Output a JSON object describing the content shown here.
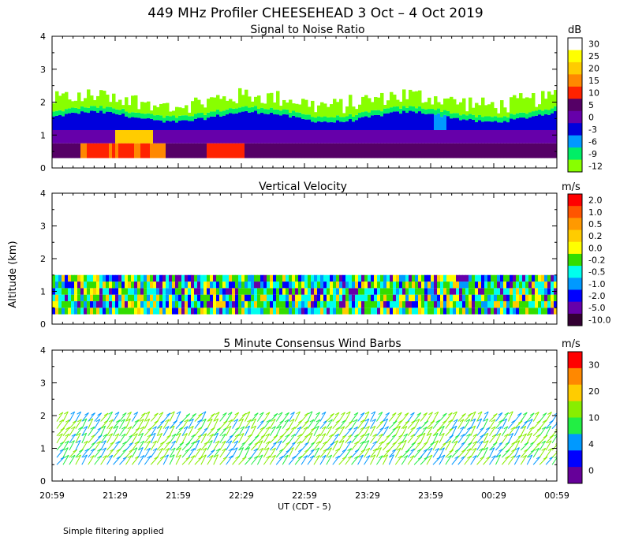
{
  "title": "449 MHz Profiler CHEESEHEAD  3 Oct –  4 Oct 2019",
  "ylabel": "Altitude (km)",
  "xlabel": "UT  (CDT - 5)",
  "footnote": "Simple filtering applied",
  "x_ticks": [
    "20:59",
    "21:29",
    "21:59",
    "22:29",
    "22:59",
    "23:29",
    "23:59",
    "00:29",
    "00:59"
  ],
  "y_ticks": [
    "0",
    "1",
    "2",
    "3",
    "4"
  ],
  "chart_data": [
    {
      "type": "heatmap",
      "title": "Signal to Noise Ratio",
      "xlabel": "UT  (CDT - 5)",
      "ylabel": "Altitude (km)",
      "ylim": [
        0,
        4
      ],
      "unit": "dB",
      "colorbar_labels": [
        "30",
        "25",
        "20",
        "15",
        "10",
        "5",
        "0",
        "-3",
        "-6",
        "-9",
        "-12"
      ],
      "colorbar_colors": [
        "#ffffff",
        "#ffff00",
        "#ffcc00",
        "#ff8800",
        "#ff2200",
        "#550066",
        "#6600aa",
        "#0000dd",
        "#0099ff",
        "#00ee66",
        "#88ff00"
      ],
      "data_extent_km": [
        0.3,
        2.3
      ]
    },
    {
      "type": "heatmap",
      "title": "Vertical Velocity",
      "xlabel": "UT  (CDT - 5)",
      "ylabel": "Altitude (km)",
      "ylim": [
        0,
        4
      ],
      "unit": "m/s",
      "colorbar_labels": [
        "2.0",
        "1.0",
        "0.5",
        "0.2",
        "0.0",
        "-0.2",
        "-0.5",
        "-1.0",
        "-2.0",
        "-5.0",
        "-10.0"
      ],
      "colorbar_colors": [
        "#ff0000",
        "#ff5500",
        "#ff9900",
        "#ffcc00",
        "#ffff00",
        "#33dd00",
        "#00ffee",
        "#0099ff",
        "#0000ff",
        "#6600aa",
        "#330033"
      ],
      "data_extent_km": [
        0.3,
        1.5
      ]
    },
    {
      "type": "scatter",
      "title": "5 Minute Consensus Wind Barbs",
      "xlabel": "UT  (CDT - 5)",
      "ylabel": "Altitude (km)",
      "ylim": [
        0,
        4
      ],
      "unit": "m/s",
      "colorbar_labels": [
        "30",
        "20",
        "10",
        "4",
        "0"
      ],
      "colorbar_colors": [
        "#ff0000",
        "#ff8800",
        "#ffcc00",
        "#88ee00",
        "#22ee44",
        "#0099ff",
        "#0000ff",
        "#660099"
      ],
      "data_extent_km": [
        0.4,
        2.0
      ]
    }
  ]
}
